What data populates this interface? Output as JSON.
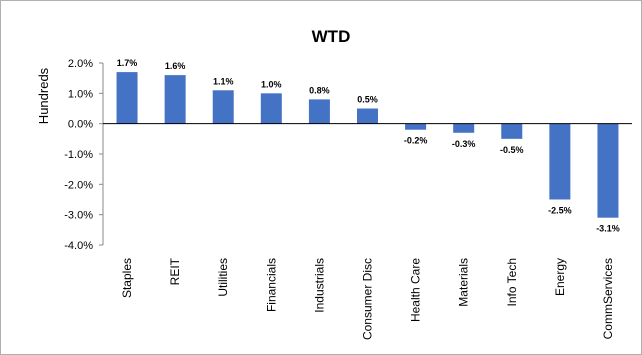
{
  "chart_data": {
    "type": "bar",
    "title": "WTD",
    "ylabel": "Hundreds",
    "xlabel": "",
    "categories": [
      "Staples",
      "REIT",
      "Utilities",
      "Financials",
      "Industrials",
      "Consumer Disc",
      "Health Care",
      "Materials",
      "Info Tech",
      "Energy",
      "CommServices"
    ],
    "values": [
      1.7,
      1.6,
      1.1,
      1.0,
      0.8,
      0.5,
      -0.2,
      -0.3,
      -0.5,
      -2.5,
      -3.1
    ],
    "data_labels": [
      "1.7%",
      "1.6%",
      "1.1%",
      "1.0%",
      "0.8%",
      "0.5%",
      "-0.2%",
      "-0.3%",
      "-0.5%",
      "-2.5%",
      "-3.1%"
    ],
    "ylim": [
      -4.0,
      2.0
    ],
    "yticks": [
      -4.0,
      -3.0,
      -2.0,
      -1.0,
      0.0,
      1.0,
      2.0
    ],
    "ytick_labels": [
      "-4.0%",
      "-3.0%",
      "-2.0%",
      "-1.0%",
      "0.0%",
      "1.0%",
      "2.0%"
    ],
    "grid": false,
    "legend": "none",
    "bar_color": "#4472C4"
  }
}
